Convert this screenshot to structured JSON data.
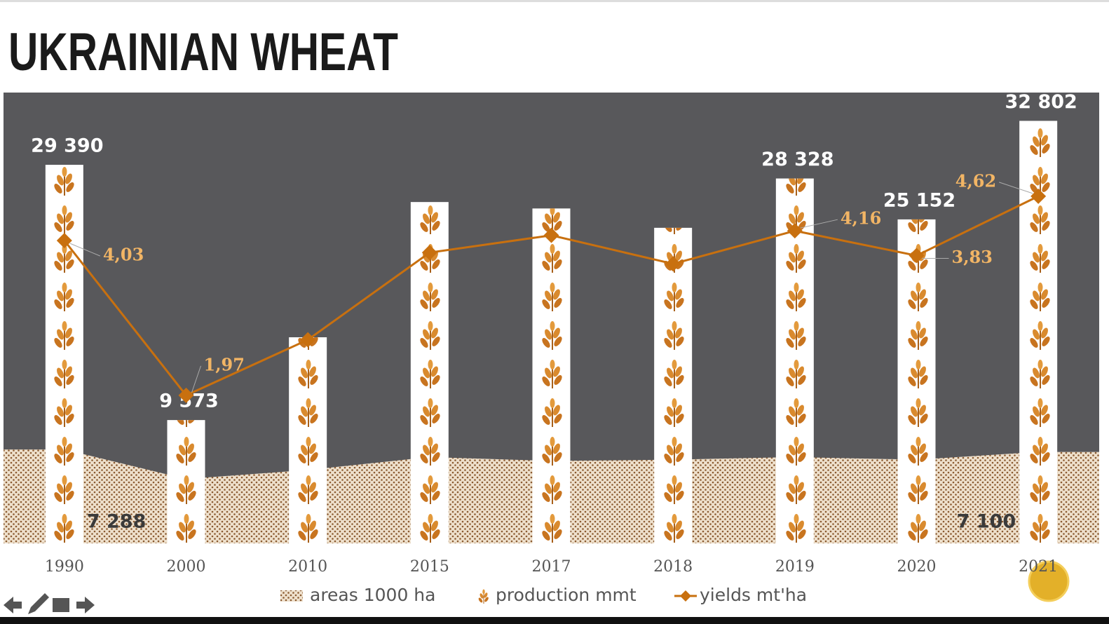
{
  "chart_data": {
    "type": "bar",
    "title": "UKRAINIAN WHEAT",
    "categories": [
      "1990",
      "2000",
      "2010",
      "2015",
      "2017",
      "2018",
      "2019",
      "2020",
      "2021"
    ],
    "ylim": [
      0,
      35000
    ],
    "y2lim": [
      0,
      6
    ],
    "series": [
      {
        "name": "areas 1000 ha",
        "type": "area",
        "color": "#8a5a30",
        "values": [
          7288,
          5000,
          5700,
          6700,
          6400,
          6500,
          6700,
          6500,
          7100
        ],
        "value_labels": [
          "7 288",
          null,
          null,
          null,
          null,
          null,
          null,
          null,
          "7 100"
        ]
      },
      {
        "name": "production mmt",
        "type": "bar",
        "color": "#ffffff",
        "values": [
          29390,
          9573,
          16000,
          26500,
          26000,
          24500,
          28328,
          25152,
          32802
        ],
        "value_labels": [
          "29 390",
          "9 573",
          null,
          null,
          null,
          null,
          "28 328",
          "25 152",
          "32 802"
        ]
      },
      {
        "name": "yields mt'ha",
        "type": "line",
        "axis": "y2",
        "color": "#c8700f",
        "values": [
          4.03,
          1.97,
          2.71,
          3.87,
          4.1,
          3.72,
          4.16,
          3.83,
          4.62
        ],
        "value_labels": [
          "4,03",
          "1,97",
          null,
          null,
          null,
          null,
          "4,16",
          "3,83",
          "4,62"
        ]
      }
    ]
  }
}
